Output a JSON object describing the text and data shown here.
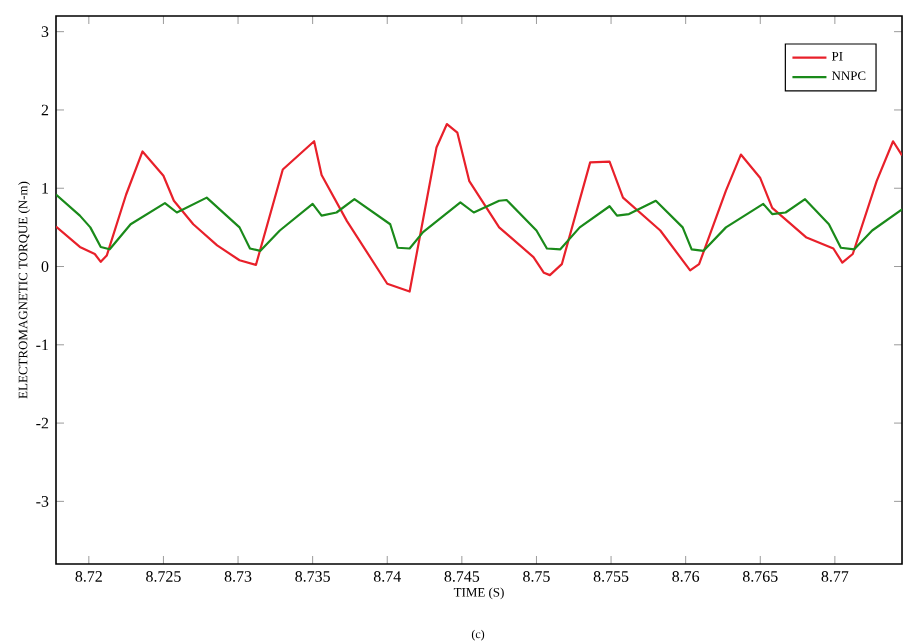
{
  "chart_data": {
    "type": "line",
    "xlabel": "TIME (S)",
    "ylabel": "ELECTROMAGNETIC TORQUE (N-m)",
    "annotations": [
      "(c)"
    ],
    "xlim": [
      8.7178,
      8.7745
    ],
    "ylim": [
      -3.8,
      3.2
    ],
    "xticks": [
      8.72,
      8.725,
      8.73,
      8.735,
      8.74,
      8.745,
      8.75,
      8.755,
      8.76,
      8.765,
      8.77
    ],
    "yticks": [
      -3,
      -2,
      -1,
      0,
      1,
      2,
      3
    ],
    "grid": false,
    "legend": "top right",
    "marker": "none",
    "line_style": "solid",
    "series": [
      {
        "name": "PI",
        "color": "#e8202a",
        "x": [
          8.7178,
          8.7194,
          8.7204,
          8.7208,
          8.7212,
          8.7225,
          8.7236,
          8.725,
          8.7257,
          8.727,
          8.7286,
          8.7301,
          8.7312,
          8.733,
          8.7351,
          8.7356,
          8.7373,
          8.74,
          8.7415,
          8.7433,
          8.744,
          8.7447,
          8.7455,
          8.7475,
          8.7498,
          8.7505,
          8.7509,
          8.7517,
          8.7536,
          8.7549,
          8.7558,
          8.7583,
          8.7603,
          8.7609,
          8.7627,
          8.7637,
          8.765,
          8.7658,
          8.7681,
          8.7699,
          8.7705,
          8.7712,
          8.7728,
          8.7739,
          8.7745
        ],
        "values": [
          0.51,
          0.25,
          0.16,
          0.06,
          0.14,
          0.92,
          1.47,
          1.16,
          0.84,
          0.54,
          0.27,
          0.08,
          0.02,
          1.24,
          1.6,
          1.17,
          0.58,
          -0.22,
          -0.32,
          1.52,
          1.82,
          1.71,
          1.09,
          0.5,
          0.12,
          -0.08,
          -0.11,
          0.03,
          1.33,
          1.34,
          0.88,
          0.46,
          -0.05,
          0.03,
          0.97,
          1.43,
          1.13,
          0.75,
          0.37,
          0.23,
          0.05,
          0.16,
          1.09,
          1.6,
          1.42
        ]
      },
      {
        "name": "NNPC",
        "color": "#1a8a1a",
        "x": [
          8.7178,
          8.7194,
          8.7201,
          8.7208,
          8.7214,
          8.7228,
          8.7251,
          8.7259,
          8.7279,
          8.7301,
          8.7308,
          8.7315,
          8.7328,
          8.735,
          8.7356,
          8.7366,
          8.7378,
          8.7402,
          8.7407,
          8.7415,
          8.7424,
          8.7449,
          8.7458,
          8.7475,
          8.748,
          8.75,
          8.7507,
          8.7516,
          8.7529,
          8.7549,
          8.7554,
          8.7562,
          8.758,
          8.7598,
          8.7604,
          8.7612,
          8.7627,
          8.7652,
          8.7658,
          8.7667,
          8.768,
          8.7696,
          8.7704,
          8.7713,
          8.7725,
          8.7745
        ],
        "values": [
          0.92,
          0.65,
          0.5,
          0.25,
          0.22,
          0.54,
          0.81,
          0.69,
          0.88,
          0.5,
          0.23,
          0.2,
          0.46,
          0.8,
          0.65,
          0.69,
          0.86,
          0.54,
          0.24,
          0.23,
          0.44,
          0.82,
          0.69,
          0.84,
          0.85,
          0.46,
          0.23,
          0.22,
          0.5,
          0.77,
          0.65,
          0.67,
          0.84,
          0.5,
          0.22,
          0.2,
          0.5,
          0.8,
          0.67,
          0.69,
          0.86,
          0.54,
          0.24,
          0.22,
          0.46,
          0.73
        ]
      }
    ]
  }
}
